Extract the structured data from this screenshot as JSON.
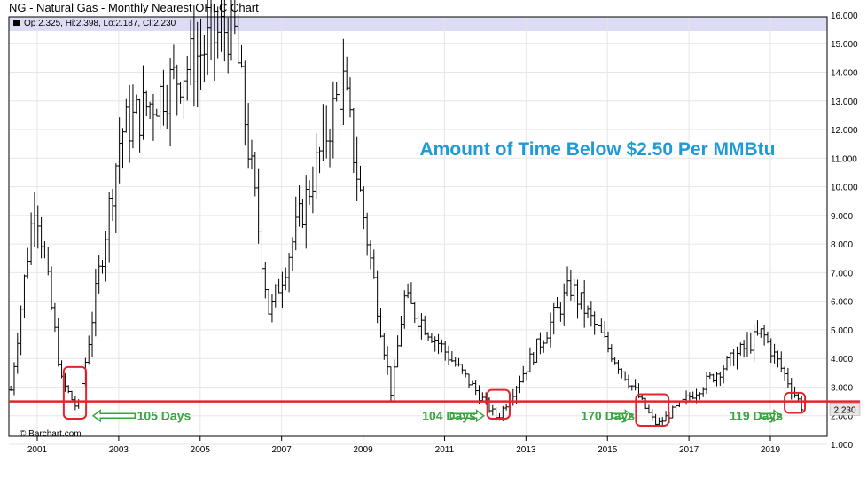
{
  "header": {
    "title": "NG - Natural Gas - Monthly Nearest OHLC Chart",
    "ohlc_readout": "Op:2.325, Hi:2.398, Lo:2.187, Cl:2.230"
  },
  "chart_data": {
    "type": "ohlc",
    "title": "NG - Natural Gas - Monthly Nearest OHLC Chart",
    "annotation_title": "Amount of Time Below $2.50 Per MMBtu",
    "x_tick_labels": [
      "2001",
      "2003",
      "2005",
      "2007",
      "2009",
      "2011",
      "2013",
      "2015",
      "2017",
      "2019"
    ],
    "x_tick_values": [
      2001,
      2003,
      2005,
      2007,
      2009,
      2011,
      2013,
      2015,
      2017,
      2019
    ],
    "xlim": [
      2000.35,
      2020.3
    ],
    "y_tick_labels": [
      "1.000",
      "2.000",
      "3.000",
      "4.000",
      "5.000",
      "6.000",
      "7.000",
      "8.000",
      "9.000",
      "10.000",
      "11.000",
      "12.000",
      "13.000",
      "14.000",
      "15.000",
      "16.000"
    ],
    "ylim": [
      1,
      16
    ],
    "last_value_label": "2.230",
    "threshold": 2.5,
    "threshold_color": "#e0252c",
    "highlight_color": "#e0252c",
    "annotation_color": "#1e9bd7",
    "duration_color": "#3aa540",
    "watermark": "© Barchart.com",
    "low_periods": [
      {
        "label": "105 Days",
        "x_start": 2001.65,
        "x_end": 2002.2,
        "low": 1.9,
        "high": 3.7
      },
      {
        "label": "104 Days",
        "x_start": 2012.05,
        "x_end": 2012.6,
        "low": 1.9,
        "high": 2.9
      },
      {
        "label": "170 Days",
        "x_start": 2015.7,
        "x_end": 2016.5,
        "low": 1.65,
        "high": 2.75
      },
      {
        "label": "119 Days",
        "x_start": 2019.35,
        "x_end": 2019.85,
        "low": 2.1,
        "high": 2.8
      }
    ],
    "key_points": [
      {
        "x": 2000.35,
        "y": 2.9
      },
      {
        "x": 2000.95,
        "y": 9.8
      },
      {
        "x": 2001.6,
        "y": 3.2
      },
      {
        "x": 2002.0,
        "y": 2.2
      },
      {
        "x": 2003.05,
        "y": 11.9
      },
      {
        "x": 2005.8,
        "y": 15.8
      },
      {
        "x": 2006.7,
        "y": 5.5
      },
      {
        "x": 2008.5,
        "y": 13.7
      },
      {
        "x": 2009.7,
        "y": 2.7
      },
      {
        "x": 2010.0,
        "y": 6.1
      },
      {
        "x": 2012.3,
        "y": 1.9
      },
      {
        "x": 2014.1,
        "y": 6.5
      },
      {
        "x": 2016.2,
        "y": 1.65
      },
      {
        "x": 2018.8,
        "y": 4.9
      },
      {
        "x": 2019.8,
        "y": 2.23
      }
    ]
  }
}
